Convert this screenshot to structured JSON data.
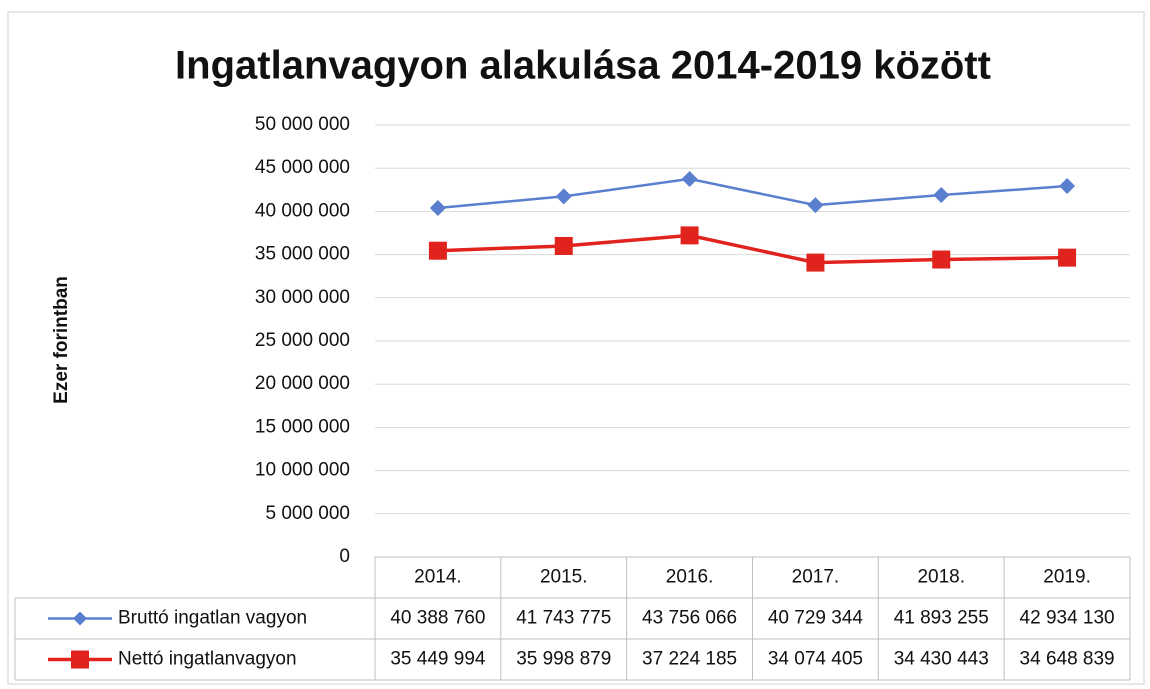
{
  "chart_data": {
    "type": "line",
    "title": "Ingatlanvagyon alakulása 2014-2019 között",
    "y_label": "Ezer forintban",
    "categories": [
      "2014.",
      "2015.",
      "2016.",
      "2017.",
      "2018.",
      "2019."
    ],
    "series": [
      {
        "name": "Bruttó ingatlan vagyon",
        "color": "#5a7fcf",
        "marker": "diamond",
        "values": [
          40388760,
          41743775,
          43756066,
          40729344,
          41893255,
          42934130
        ],
        "value_labels": [
          "40 388 760",
          "41 743 775",
          "43 756 066",
          "40 729 344",
          "41 893 255",
          "42 934 130"
        ]
      },
      {
        "name": "Nettó ingatlanvagyon",
        "color": "#e0231d",
        "marker": "square",
        "values": [
          35449994,
          35998879,
          37224185,
          34074405,
          34430443,
          34648839
        ],
        "value_labels": [
          "35 449 994",
          "35 998 879",
          "37 224 185",
          "34 074 405",
          "34 430 443",
          "34 648 839"
        ]
      }
    ],
    "ylim": [
      0,
      50000000
    ],
    "yticks": [
      0,
      {
        "value": 5000000,
        "label": "5 000 000"
      },
      {
        "value": 10000000,
        "label": "10 000 000"
      },
      {
        "value": 15000000,
        "label": "15 000 000"
      },
      {
        "value": 20000000,
        "label": "20 000 000"
      },
      {
        "value": 25000000,
        "label": "25 000 000"
      },
      {
        "value": 30000000,
        "label": "30 000 000"
      },
      {
        "value": 35000000,
        "label": "35 000 000"
      },
      {
        "value": 40000000,
        "label": "40 000 000"
      },
      {
        "value": 45000000,
        "label": "45 000 000"
      },
      {
        "value": 50000000,
        "label": "50 000 000"
      }
    ],
    "grid": true
  }
}
